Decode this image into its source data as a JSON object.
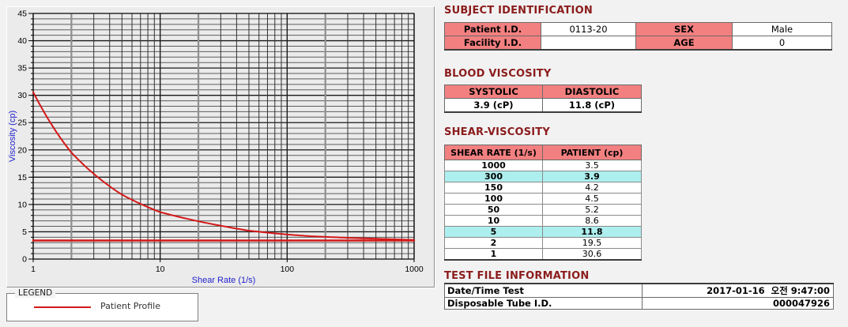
{
  "colors": {
    "title_maroon": "#8b1c1c",
    "table_header_salmon": "#f38080",
    "highlight_cyan": "#adeeee",
    "series_red": "#d41818",
    "axis_label_blue": "#2222ce",
    "chart_background": "#ebebeb"
  },
  "legend": {
    "title": "LEGEND",
    "series_label": "Patient Profile"
  },
  "subject_identification": {
    "title": "SUBJECT IDENTIFICATION",
    "rows": [
      [
        "Patient I.D.",
        "0113-20",
        "SEX",
        "Male"
      ],
      [
        "Facility I.D.",
        "",
        "AGE",
        "0"
      ]
    ]
  },
  "blood_viscosity": {
    "title": "BLOOD VISCOSITY",
    "headers": [
      "SYSTOLIC",
      "DIASTOLIC"
    ],
    "values": [
      "3.9 (cP)",
      "11.8 (cP)"
    ]
  },
  "shear_viscosity": {
    "title": "SHEAR-VISCOSITY",
    "headers": [
      "SHEAR RATE (1/s)",
      "PATIENT (cp)"
    ],
    "rows": [
      [
        "1000",
        "3.5"
      ],
      [
        "300",
        "3.9"
      ],
      [
        "150",
        "4.2"
      ],
      [
        "100",
        "4.5"
      ],
      [
        "50",
        "5.2"
      ],
      [
        "10",
        "8.6"
      ],
      [
        "5",
        "11.8"
      ],
      [
        "2",
        "19.5"
      ],
      [
        "1",
        "30.6"
      ]
    ],
    "highlighted_rates": [
      "300",
      "5"
    ]
  },
  "test_file_information": {
    "title": "TEST FILE INFORMATION",
    "rows": [
      [
        "Date/Time Test",
        "2017-01-16  오전 9:47:00"
      ],
      [
        "Disposable Tube I.D.",
        "000047926"
      ]
    ]
  },
  "chart_data": {
    "type": "line",
    "title": "",
    "xlabel": "Shear Rate (1/s)",
    "ylabel": "Viscosity (cp)",
    "x_scale": "log",
    "xlim": [
      1,
      1000
    ],
    "ylim": [
      0,
      45
    ],
    "x_major_ticks": [
      1,
      10,
      100,
      1000
    ],
    "y_major_tick_step": 5,
    "y_minor_tick_step": 1,
    "grid": true,
    "legend_position": "bottom-left",
    "series": [
      {
        "name": "Patient Profile",
        "color": "#d41818",
        "smooth": true,
        "x": [
          1,
          2,
          5,
          10,
          50,
          100,
          150,
          300,
          1000
        ],
        "y": [
          30.6,
          19.5,
          11.8,
          8.6,
          5.2,
          4.5,
          4.2,
          3.9,
          3.5
        ]
      },
      {
        "name": "",
        "color": "#d41818",
        "smooth": false,
        "x": [
          1,
          1000
        ],
        "y": [
          3.4,
          3.4
        ]
      }
    ]
  }
}
